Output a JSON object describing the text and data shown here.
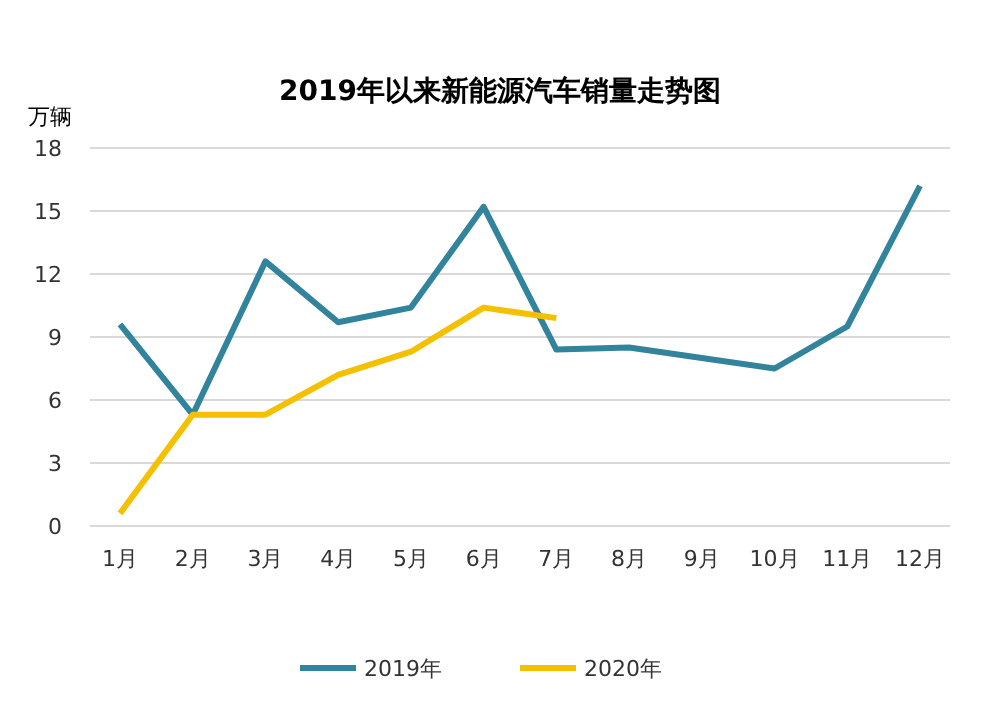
{
  "chart_data": {
    "type": "line",
    "title": "2019年以来新能源汽车销量走势图",
    "ylabel": "万辆",
    "categories": [
      "1月",
      "2月",
      "3月",
      "4月",
      "5月",
      "6月",
      "7月",
      "8月",
      "9月",
      "10月",
      "11月",
      "12月"
    ],
    "series": [
      {
        "name": "2019年",
        "color": "#31849b",
        "values": [
          9.6,
          5.3,
          12.6,
          9.7,
          10.4,
          15.2,
          8.4,
          8.5,
          8.0,
          7.5,
          9.5,
          16.2
        ]
      },
      {
        "name": "2020年",
        "color": "#f5c000",
        "values": [
          0.6,
          5.3,
          5.3,
          7.2,
          8.3,
          10.4,
          9.9,
          null,
          null,
          null,
          null,
          null
        ]
      }
    ],
    "ylim": [
      0,
      18
    ],
    "yticks": [
      0,
      3,
      6,
      9,
      12,
      15,
      18
    ],
    "grid": "y",
    "legend": "bottom",
    "marker": "none",
    "line_style": "solid"
  }
}
